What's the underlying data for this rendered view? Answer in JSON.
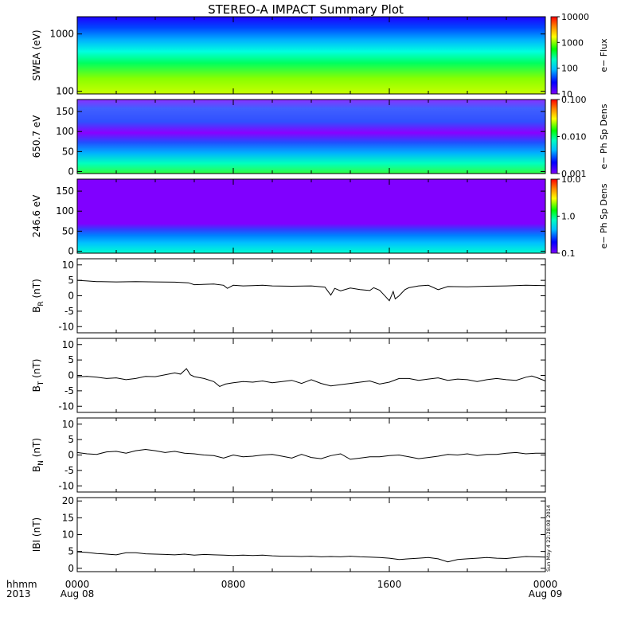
{
  "chart_data": {
    "title": "STEREO-A IMPACT Summary Plot",
    "x_axis": {
      "ticks": [
        {
          "hhmm": "0000",
          "date": "Aug 08",
          "hour": 0
        },
        {
          "hhmm": "0800",
          "date": "",
          "hour": 8
        },
        {
          "hhmm": "1600",
          "date": "",
          "hour": 16
        },
        {
          "hhmm": "0000",
          "date": "Aug 09",
          "hour": 24
        }
      ],
      "row_label_1": "hhmm",
      "row_label_2": "2013",
      "range_hours": [
        0,
        24
      ]
    },
    "timestamp": "Sun May  4 22:28:08 2014",
    "panels": [
      {
        "type": "heatmap",
        "ylabel": "SWEA (eV)",
        "y_scale": "log",
        "ylim": [
          90,
          2000
        ],
        "yticks": [
          {
            "label": "1000",
            "value": 1000
          },
          {
            "label": "100",
            "value": 100
          }
        ],
        "colorbar": {
          "label": "e− Flux",
          "scale": "log",
          "range": [
            10,
            10000
          ],
          "ticks": [
            {
              "label": "10000",
              "value": 10000
            },
            {
              "label": "1000",
              "value": 1000
            },
            {
              "label": "100",
              "value": 100
            },
            {
              "label": "10",
              "value": 10
            }
          ]
        }
      },
      {
        "type": "heatmap",
        "ylabel": "650.7 eV",
        "ylim": [
          -5,
          180
        ],
        "yticks": [
          {
            "label": "150",
            "value": 150
          },
          {
            "label": "100",
            "value": 100
          },
          {
            "label": "50",
            "value": 50
          },
          {
            "label": "0",
            "value": 0
          }
        ],
        "colorbar": {
          "label": "e− Ph Sp Dens",
          "scale": "log",
          "range": [
            0.001,
            0.1
          ],
          "ticks": [
            {
              "label": "0.100",
              "value": 0.1
            },
            {
              "label": "0.010",
              "value": 0.01
            },
            {
              "label": "0.001",
              "value": 0.001
            }
          ]
        }
      },
      {
        "type": "heatmap",
        "ylabel": "246.6 eV",
        "ylim": [
          -5,
          180
        ],
        "yticks": [
          {
            "label": "150",
            "value": 150
          },
          {
            "label": "100",
            "value": 100
          },
          {
            "label": "50",
            "value": 50
          },
          {
            "label": "0",
            "value": 0
          }
        ],
        "colorbar": {
          "label": "e− Ph Sp Dens",
          "scale": "log",
          "range": [
            0.1,
            10
          ],
          "ticks": [
            {
              "label": "10.0",
              "value": 10
            },
            {
              "label": "1.0",
              "value": 1
            },
            {
              "label": "0.1",
              "value": 0.1
            }
          ]
        }
      },
      {
        "type": "line",
        "ylabel_main": "B",
        "ylabel_sub": "R",
        "ylabel_unit": " (nT)",
        "ylim": [
          -12,
          12
        ],
        "yticks": [
          {
            "label": "10",
            "value": 10
          },
          {
            "label": "5",
            "value": 5
          },
          {
            "label": "0",
            "value": 0
          },
          {
            "label": "-5",
            "value": -5
          },
          {
            "label": "-10",
            "value": -10
          }
        ],
        "series": [
          {
            "x": [
              0,
              0.5,
              1,
              2,
              3,
              4,
              5,
              5.7,
              6,
              7,
              7.5,
              7.7,
              8,
              8.5,
              9,
              9.5,
              10,
              11,
              12,
              12.7,
              13,
              13.2,
              13.5,
              14,
              14.5,
              15,
              15.2,
              15.5,
              15.8,
              16,
              16.2,
              16.3,
              16.5,
              16.8,
              17,
              17.5,
              18,
              18.5,
              19,
              20,
              21,
              22,
              23,
              24
            ],
            "y": [
              5,
              4.8,
              4.6,
              4.5,
              4.6,
              4.5,
              4.4,
              4.2,
              3.6,
              3.8,
              3.4,
              2.4,
              3.4,
              3.2,
              3.3,
              3.4,
              3.2,
              3.1,
              3.2,
              2.8,
              0.2,
              2.4,
              1.6,
              2.5,
              2.0,
              1.7,
              2.6,
              1.8,
              -0.2,
              -1.6,
              1.4,
              -1.0,
              0.0,
              2.0,
              2.6,
              3.2,
              3.4,
              2.0,
              3.0,
              2.9,
              3.1,
              3.2,
              3.4,
              3.3
            ]
          }
        ]
      },
      {
        "type": "line",
        "ylabel_main": "B",
        "ylabel_sub": "T",
        "ylabel_unit": " (nT)",
        "ylim": [
          -12,
          12
        ],
        "yticks": [
          {
            "label": "10",
            "value": 10
          },
          {
            "label": "5",
            "value": 5
          },
          {
            "label": "0",
            "value": 0
          },
          {
            "label": "-5",
            "value": -5
          },
          {
            "label": "-10",
            "value": -10
          }
        ],
        "series": [
          {
            "x": [
              0,
              0.5,
              1,
              1.5,
              2,
              2.5,
              3,
              3.5,
              4,
              4.5,
              5,
              5.3,
              5.6,
              5.8,
              6,
              6.5,
              7,
              7.3,
              7.6,
              8,
              8.5,
              9,
              9.5,
              10,
              10.5,
              11,
              11.5,
              12,
              12.5,
              13,
              13.5,
              14,
              14.5,
              15,
              15.5,
              16,
              16.5,
              17,
              17.5,
              18,
              18.5,
              19,
              19.5,
              20,
              20.5,
              21,
              21.5,
              22,
              22.5,
              23,
              23.3,
              23.6,
              24
            ],
            "y": [
              -0.5,
              -0.3,
              -0.6,
              -1.0,
              -0.8,
              -1.4,
              -1.0,
              -0.3,
              -0.4,
              0.2,
              0.8,
              0.4,
              2.2,
              0.2,
              -0.4,
              -1.0,
              -2.0,
              -3.6,
              -2.8,
              -2.4,
              -2.0,
              -2.2,
              -1.8,
              -2.4,
              -2.0,
              -1.6,
              -2.6,
              -1.4,
              -2.6,
              -3.4,
              -3.0,
              -2.6,
              -2.2,
              -1.8,
              -2.8,
              -2.2,
              -1.0,
              -1.0,
              -1.6,
              -1.2,
              -0.8,
              -1.6,
              -1.2,
              -1.4,
              -2.0,
              -1.4,
              -1.0,
              -1.4,
              -1.6,
              -0.6,
              -0.2,
              -0.8,
              -1.8
            ]
          }
        ]
      },
      {
        "type": "line",
        "ylabel_main": "B",
        "ylabel_sub": "N",
        "ylabel_unit": " (nT)",
        "ylim": [
          -12,
          12
        ],
        "yticks": [
          {
            "label": "10",
            "value": 10
          },
          {
            "label": "5",
            "value": 5
          },
          {
            "label": "0",
            "value": 0
          },
          {
            "label": "-5",
            "value": -5
          },
          {
            "label": "-10",
            "value": -10
          }
        ],
        "series": [
          {
            "x": [
              0,
              0.5,
              1,
              1.5,
              2,
              2.5,
              3,
              3.5,
              4,
              4.5,
              5,
              5.5,
              6,
              6.5,
              7,
              7.5,
              8,
              8.5,
              9,
              9.5,
              10,
              10.5,
              11,
              11.5,
              12,
              12.5,
              13,
              13.5,
              14,
              14.5,
              15,
              15.5,
              16,
              16.5,
              17,
              17.5,
              18,
              18.5,
              19,
              19.5,
              20,
              20.5,
              21,
              21.5,
              22,
              22.5,
              23,
              23.5,
              24
            ],
            "y": [
              0.8,
              0.4,
              0.2,
              1.0,
              1.2,
              0.6,
              1.4,
              1.8,
              1.4,
              0.8,
              1.2,
              0.6,
              0.4,
              0.0,
              -0.2,
              -1.0,
              0.0,
              -0.6,
              -0.4,
              0.0,
              0.2,
              -0.4,
              -1.0,
              0.2,
              -0.8,
              -1.2,
              -0.2,
              0.4,
              -1.4,
              -1.0,
              -0.6,
              -0.6,
              -0.2,
              0.0,
              -0.6,
              -1.2,
              -0.8,
              -0.4,
              0.2,
              0.0,
              0.4,
              -0.2,
              0.2,
              0.2,
              0.6,
              0.8,
              0.4,
              0.6,
              0.6
            ]
          }
        ]
      },
      {
        "type": "line",
        "ylabel_main": "IBI",
        "ylabel_sub": "",
        "ylabel_unit": " (nT)",
        "ylim": [
          -1,
          21
        ],
        "yticks": [
          {
            "label": "20",
            "value": 20
          },
          {
            "label": "15",
            "value": 15
          },
          {
            "label": "10",
            "value": 10
          },
          {
            "label": "5",
            "value": 5
          },
          {
            "label": "0",
            "value": 0
          }
        ],
        "series": [
          {
            "x": [
              0,
              0.5,
              1,
              1.5,
              2,
              2.5,
              3,
              3.5,
              4,
              4.5,
              5,
              5.5,
              6,
              6.5,
              7,
              7.5,
              8,
              8.5,
              9,
              9.5,
              10,
              10.5,
              11,
              11.5,
              12,
              12.5,
              13,
              13.5,
              14,
              14.5,
              15,
              15.5,
              16,
              16.5,
              17,
              17.5,
              18,
              18.5,
              19,
              19.5,
              20,
              20.5,
              21,
              21.5,
              22,
              22.5,
              23,
              23.5,
              24
            ],
            "y": [
              4.9,
              4.7,
              4.4,
              4.2,
              4.0,
              4.6,
              4.6,
              4.3,
              4.2,
              4.1,
              4.0,
              4.2,
              3.9,
              4.1,
              4.0,
              3.9,
              3.8,
              3.9,
              3.8,
              3.9,
              3.7,
              3.6,
              3.6,
              3.5,
              3.6,
              3.4,
              3.5,
              3.4,
              3.6,
              3.4,
              3.3,
              3.2,
              3.0,
              2.6,
              2.8,
              3.0,
              3.2,
              2.8,
              1.9,
              2.6,
              2.8,
              3.0,
              3.2,
              3.0,
              2.9,
              3.2,
              3.5,
              3.4,
              3.3
            ]
          }
        ]
      }
    ]
  }
}
